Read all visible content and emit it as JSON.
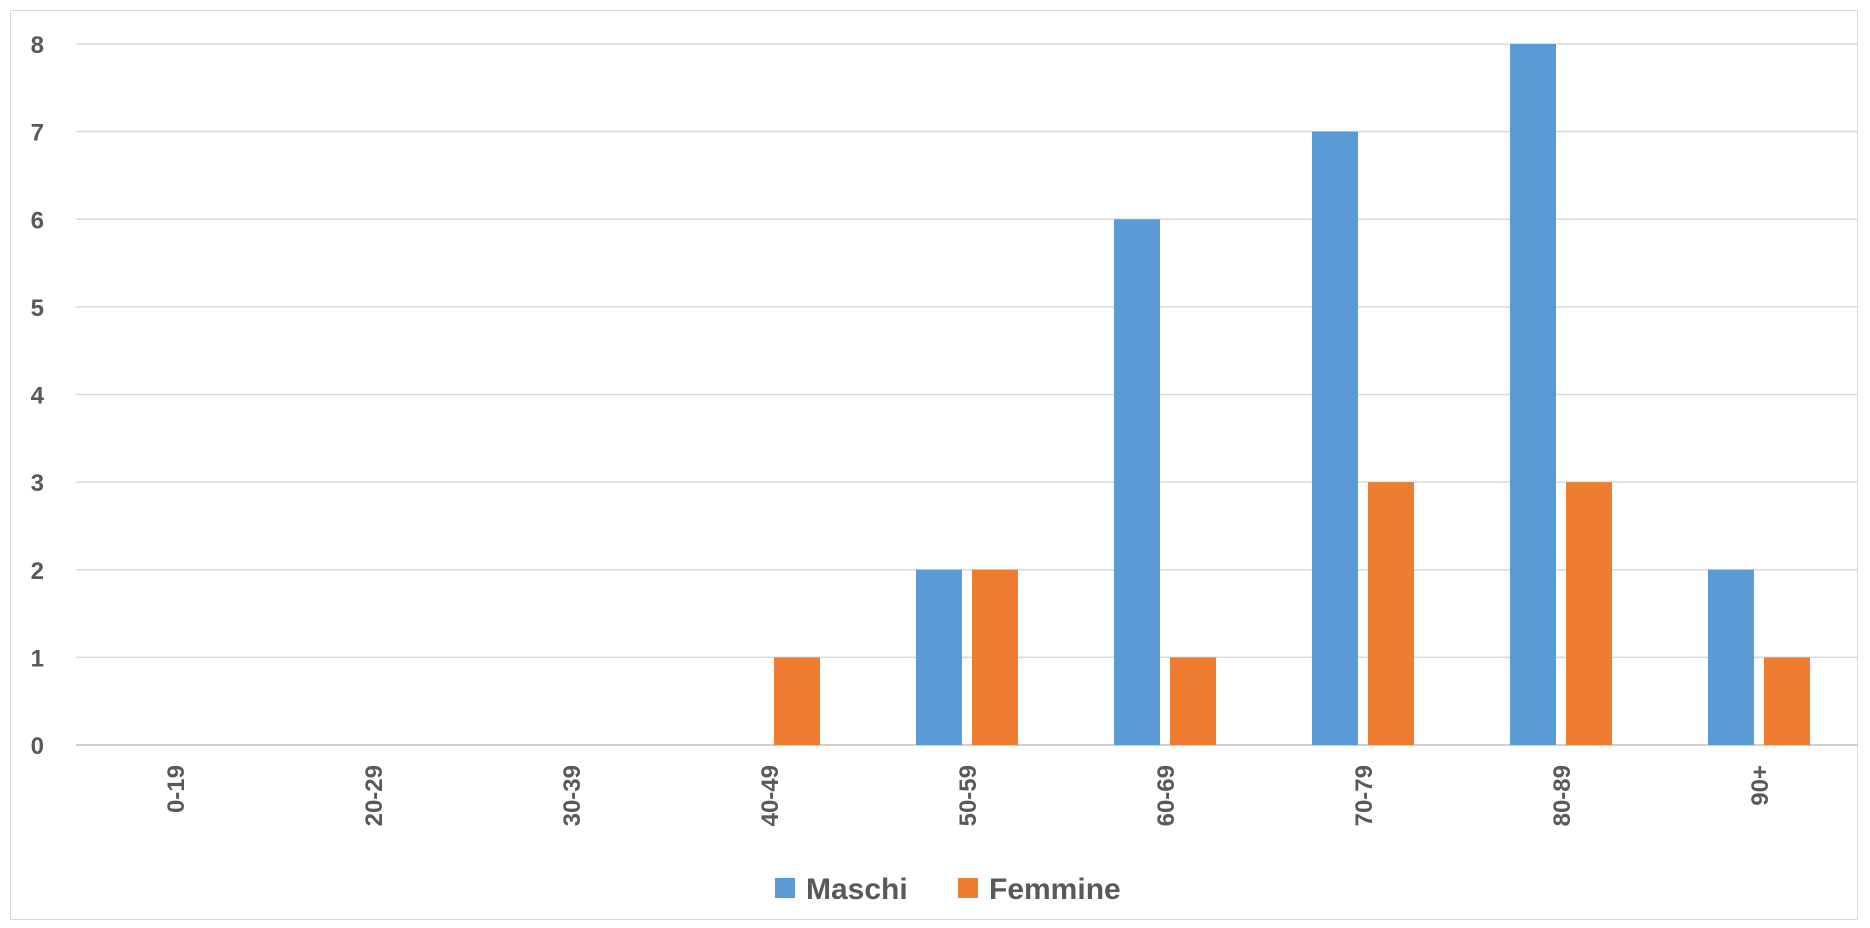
{
  "chart_data": {
    "type": "bar",
    "title": "",
    "xlabel": "",
    "ylabel": "",
    "categories": [
      "0-19",
      "20-29",
      "30-39",
      "40-49",
      "50-59",
      "60-69",
      "70-79",
      "80-89",
      "90+"
    ],
    "series": [
      {
        "name": "Maschi",
        "color": "#5b9bd5",
        "values": [
          0,
          0,
          0,
          0,
          2,
          6,
          7,
          8,
          2
        ]
      },
      {
        "name": "Femmine",
        "color": "#ed7d31",
        "values": [
          0,
          0,
          0,
          1,
          2,
          1,
          3,
          3,
          1
        ]
      }
    ],
    "ylim": [
      0,
      8
    ],
    "yticks": [
      "0",
      "1",
      "2",
      "3",
      "4",
      "5",
      "6",
      "7",
      "8"
    ],
    "grid": true,
    "legend_position": "bottom"
  }
}
